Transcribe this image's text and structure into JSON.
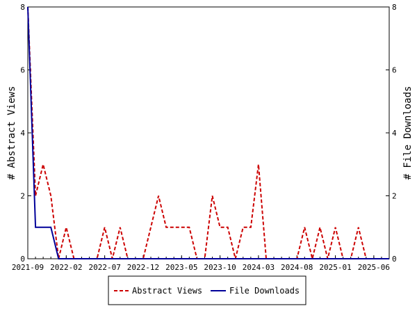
{
  "chart_data": {
    "type": "line",
    "title": "",
    "xlabel": "",
    "ylabel": "# Abstract Views",
    "y2label": "# File Downloads",
    "x_tick_labels": [
      "2021-09",
      "2022-02",
      "2022-07",
      "2022-12",
      "2023-05",
      "2023-10",
      "2024-03",
      "2024-08",
      "2025-01",
      "2025-06"
    ],
    "y_ticks": [
      0,
      2,
      4,
      6,
      8
    ],
    "ylim": [
      0,
      8
    ],
    "y2lim": [
      0,
      8
    ],
    "x_months_range": [
      "2021-09",
      "2025-08"
    ],
    "legend_position": "bottom",
    "series": [
      {
        "name": "Abstract Views",
        "color": "#cc0000",
        "style": "dashed",
        "x": [
          "2021-09",
          "2021-10",
          "2021-11",
          "2021-12",
          "2022-01",
          "2022-02",
          "2022-03",
          "2022-04",
          "2022-05",
          "2022-06",
          "2022-07",
          "2022-08",
          "2022-09",
          "2022-10",
          "2022-11",
          "2022-12",
          "2023-01",
          "2023-02",
          "2023-03",
          "2023-04",
          "2023-05",
          "2023-06",
          "2023-07",
          "2023-08",
          "2023-09",
          "2023-10",
          "2023-11",
          "2023-12",
          "2024-01",
          "2024-02",
          "2024-03",
          "2024-04",
          "2024-05",
          "2024-06",
          "2024-07",
          "2024-08",
          "2024-09",
          "2024-10",
          "2024-11",
          "2024-12",
          "2025-01",
          "2025-02",
          "2025-03",
          "2025-04",
          "2025-05",
          "2025-06",
          "2025-07",
          "2025-08"
        ],
        "values": [
          8,
          2,
          3,
          2,
          0,
          1,
          0,
          0,
          0,
          0,
          1,
          0,
          1,
          0,
          0,
          0,
          1,
          2,
          1,
          1,
          1,
          1,
          0,
          0,
          2,
          1,
          1,
          0,
          1,
          1,
          3,
          0,
          0,
          0,
          0,
          0,
          1,
          0,
          1,
          0,
          1,
          0,
          0,
          1,
          0,
          0,
          0,
          0
        ]
      },
      {
        "name": "File Downloads",
        "color": "#000099",
        "style": "solid",
        "x": [
          "2021-09",
          "2021-10",
          "2021-11",
          "2021-12",
          "2022-01",
          "2022-02",
          "2022-03",
          "2022-04",
          "2022-05",
          "2022-06",
          "2022-07",
          "2022-08",
          "2022-09",
          "2022-10",
          "2022-11",
          "2022-12",
          "2023-01",
          "2023-02",
          "2023-03",
          "2023-04",
          "2023-05",
          "2023-06",
          "2023-07",
          "2023-08",
          "2023-09",
          "2023-10",
          "2023-11",
          "2023-12",
          "2024-01",
          "2024-02",
          "2024-03",
          "2024-04",
          "2024-05",
          "2024-06",
          "2024-07",
          "2024-08",
          "2024-09",
          "2024-10",
          "2024-11",
          "2024-12",
          "2025-01",
          "2025-02",
          "2025-03",
          "2025-04",
          "2025-05",
          "2025-06",
          "2025-07",
          "2025-08"
        ],
        "values": [
          8,
          1,
          1,
          1,
          0,
          0,
          0,
          0,
          0,
          0,
          0,
          0,
          0,
          0,
          0,
          0,
          0,
          0,
          0,
          0,
          0,
          0,
          0,
          0,
          0,
          0,
          0,
          0,
          0,
          0,
          0,
          0,
          0,
          0,
          0,
          0,
          0,
          0,
          0,
          0,
          0,
          0,
          0,
          0,
          0,
          0,
          0,
          0
        ]
      }
    ]
  }
}
